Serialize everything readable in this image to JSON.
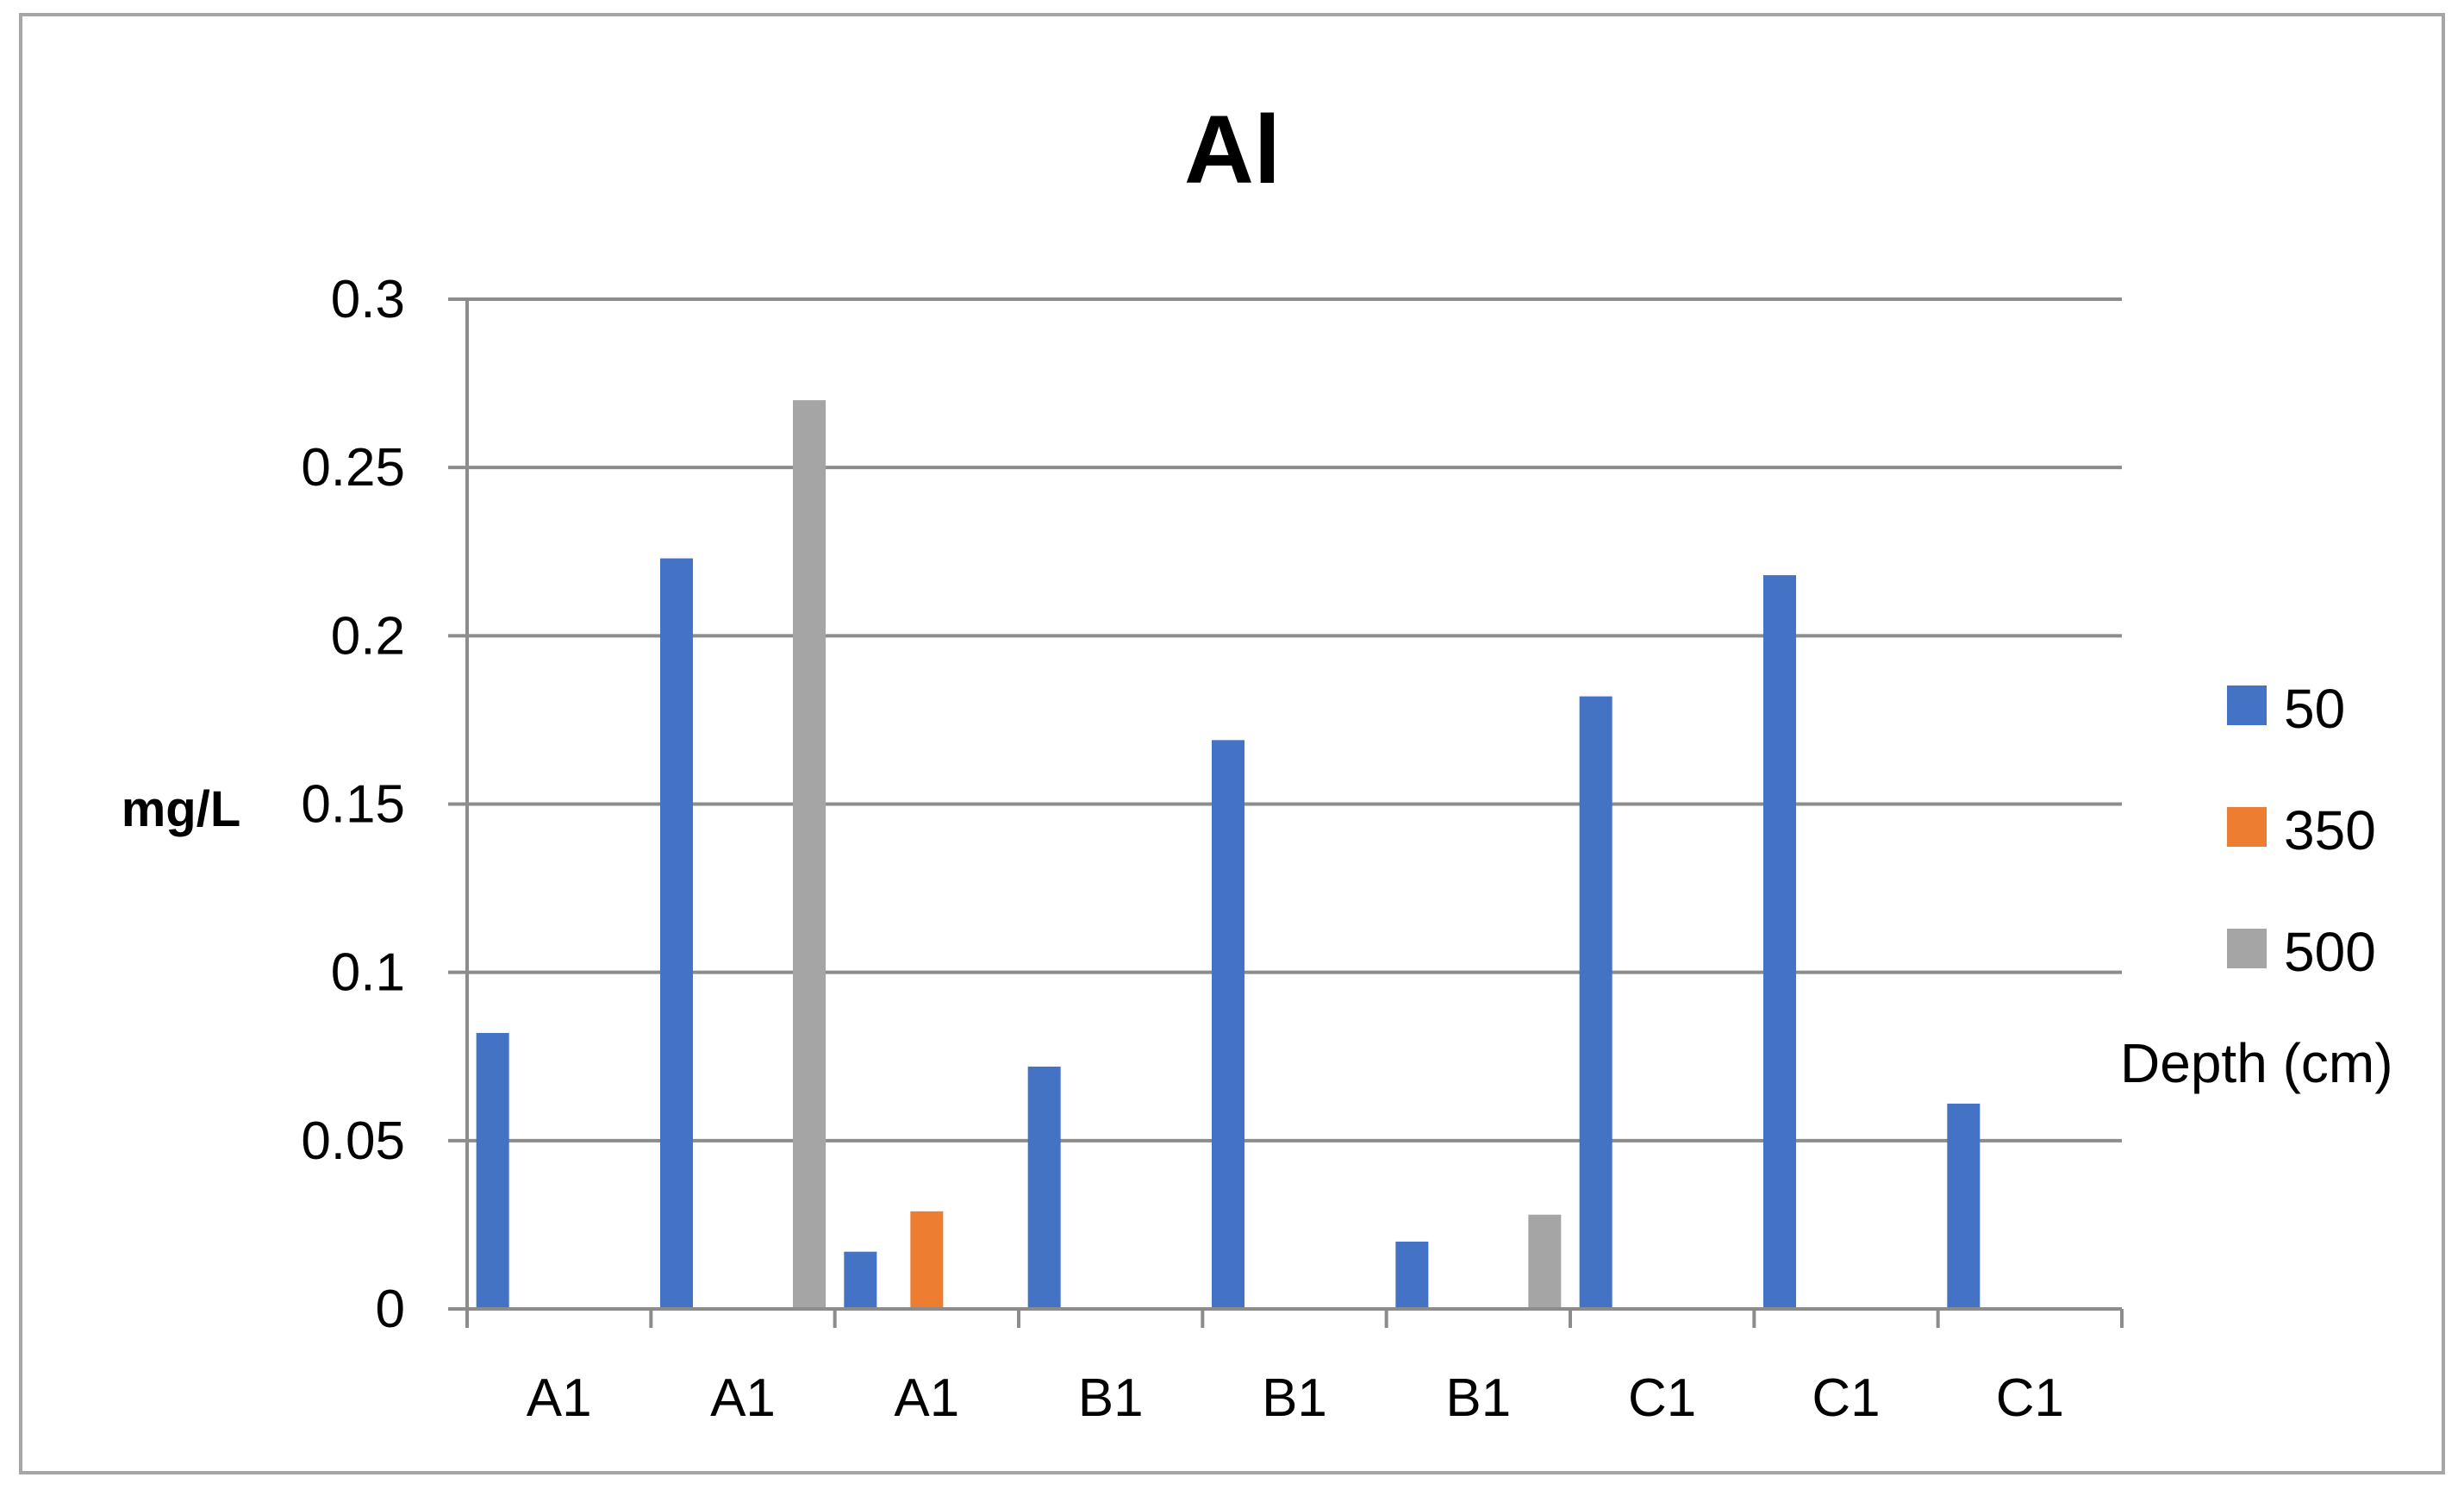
{
  "chart_data": {
    "type": "bar",
    "title": "Al",
    "ylabel": "mg/L",
    "xlabel": "",
    "legend_title": "Depth (cm)",
    "legend_position": "right",
    "grid": true,
    "ylim": [
      0,
      0.3
    ],
    "yticks": [
      "0",
      "0.05",
      "0.1",
      "0.15",
      "0.2",
      "0.25",
      "0.3"
    ],
    "categories": [
      "A1",
      "A1",
      "A1",
      "B1",
      "B1",
      "B1",
      "C1",
      "C1",
      "C1"
    ],
    "series": [
      {
        "name": "50",
        "color": "#4472c4",
        "values": [
          0.082,
          0.223,
          0.017,
          0.072,
          0.169,
          0.02,
          0.182,
          0.218,
          0.061
        ]
      },
      {
        "name": "350",
        "color": "#ed7d31",
        "values": [
          null,
          null,
          0.029,
          null,
          null,
          null,
          null,
          null,
          null
        ]
      },
      {
        "name": "500",
        "color": "#a5a5a5",
        "values": [
          null,
          0.27,
          null,
          null,
          null,
          0.028,
          null,
          null,
          null
        ]
      }
    ]
  }
}
